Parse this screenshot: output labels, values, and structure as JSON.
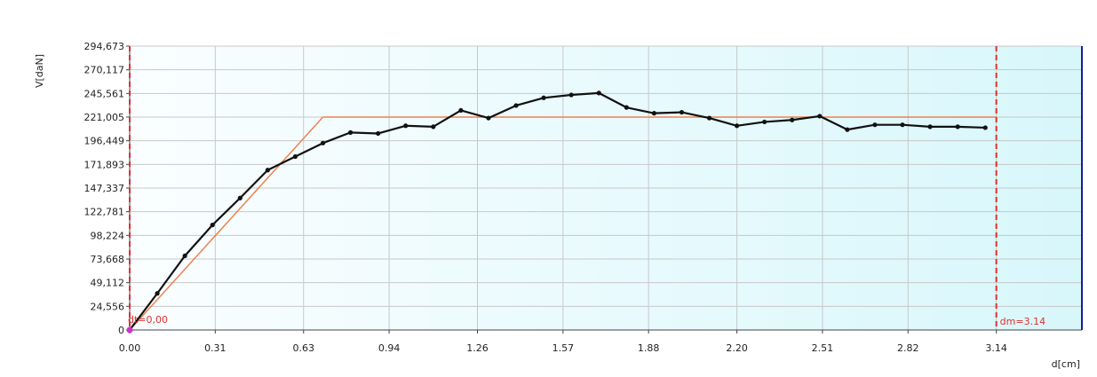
{
  "chart_data": {
    "type": "line",
    "xlabel": "d[cm]",
    "ylabel": "V[daN]",
    "xlim": [
      0,
      3.45
    ],
    "ylim": [
      0,
      294.673
    ],
    "x_ticks": [
      "0.00",
      "0.31",
      "0.63",
      "0.94",
      "1.26",
      "1.57",
      "1.88",
      "2.20",
      "2.51",
      "2.82",
      "3.14"
    ],
    "x_tick_values": [
      0.0,
      0.31,
      0.63,
      0.94,
      1.26,
      1.57,
      1.88,
      2.2,
      2.51,
      2.82,
      3.14
    ],
    "y_ticks": [
      "0",
      "24,556",
      "49,112",
      "73,668",
      "98,224",
      "122,781",
      "147,337",
      "171,893",
      "196,449",
      "221,005",
      "245,561",
      "270,117",
      "294,673"
    ],
    "y_tick_values": [
      0,
      24.556,
      49.112,
      73.668,
      98.224,
      122.781,
      147.337,
      171.893,
      196.449,
      221.005,
      245.561,
      270.117,
      294.673
    ],
    "grid": true,
    "series": [
      {
        "color": "#111111",
        "markers": true,
        "x": [
          0.0,
          0.1,
          0.2,
          0.3,
          0.4,
          0.5,
          0.6,
          0.7,
          0.8,
          0.9,
          1.0,
          1.1,
          1.2,
          1.3,
          1.4,
          1.5,
          1.6,
          1.7,
          1.8,
          1.9,
          2.0,
          2.1,
          2.2,
          2.3,
          2.4,
          2.5,
          2.6,
          2.7,
          2.8,
          2.9,
          3.0,
          3.1
        ],
        "y": [
          0,
          38,
          77,
          109,
          137,
          166,
          180,
          194,
          205,
          204,
          212,
          211,
          228,
          220,
          233,
          241,
          244,
          246,
          231,
          225,
          226,
          220,
          212,
          216,
          218,
          222,
          208,
          213,
          213,
          211,
          211,
          210
        ]
      },
      {
        "color": "#f08050",
        "markers": false,
        "x": [
          0.0,
          0.7,
          3.14
        ],
        "y": [
          0,
          221,
          221
        ]
      }
    ],
    "markers": [
      {
        "label": "dt=0,00",
        "x": 0.0,
        "color": "#e03030"
      },
      {
        "label": "dm=3.14",
        "x": 3.14,
        "color": "#e03030"
      }
    ],
    "colors": {
      "grid": "#c8c8c8",
      "axis": "#444444",
      "right_border": "#1a1a9a",
      "origin_marker": "#d030d0"
    }
  }
}
